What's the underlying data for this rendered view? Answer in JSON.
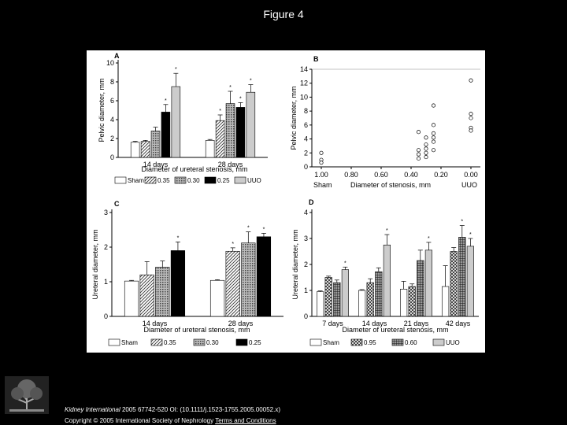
{
  "page": {
    "title": "Figure 4",
    "citation_journal": "Kidney International",
    "citation_rest": " 2005 67742-520 OI: (10.1111/j.1523-1755.2005.00052.x)",
    "copyright_text": "Copyright © 2005 International Society of Nephrology ",
    "copyright_link": "Terms and Conditions",
    "publisher": "ELSEVIER"
  },
  "chart_data": [
    {
      "panel": "A",
      "type": "bar",
      "ylabel": "Pelvic diameter, mm",
      "xlabel": "Diameter of ureteral stenosis, mm",
      "ylim": [
        0,
        10
      ],
      "yticks": [
        "0",
        "2",
        "4",
        "6",
        "8",
        "10"
      ],
      "categories": [
        "14 days",
        "28 days"
      ],
      "series": [
        {
          "name": "Sham",
          "values": [
            1.6,
            1.8
          ],
          "errors": [
            0.1,
            0.1
          ],
          "sig": [
            false,
            false
          ],
          "pattern": "white"
        },
        {
          "name": "0.35",
          "values": [
            1.7,
            3.9
          ],
          "errors": [
            0.1,
            0.6
          ],
          "sig": [
            false,
            true
          ],
          "pattern": "diag"
        },
        {
          "name": "0.30",
          "values": [
            2.8,
            5.7
          ],
          "errors": [
            0.4,
            1.3
          ],
          "sig": [
            false,
            true
          ],
          "pattern": "dots"
        },
        {
          "name": "0.25",
          "values": [
            4.8,
            5.3
          ],
          "errors": [
            0.8,
            0.5
          ],
          "sig": [
            true,
            true
          ],
          "pattern": "black"
        },
        {
          "name": "UUO",
          "values": [
            7.5,
            6.9
          ],
          "errors": [
            1.4,
            0.8
          ],
          "sig": [
            true,
            true
          ],
          "pattern": "gray"
        }
      ]
    },
    {
      "panel": "B",
      "type": "scatter",
      "ylabel": "Pelvic diameter, mm",
      "xlabel": "Diameter of stenosis, mm",
      "ylim": [
        0,
        14
      ],
      "yticks": [
        "0",
        "2",
        "4",
        "6",
        "8",
        "10",
        "12",
        "14"
      ],
      "xticks": [
        "1.00",
        "0.80",
        "0.60",
        "0.40",
        "0.20",
        "0.00"
      ],
      "x_left_label": "Sham",
      "x_right_label": "UUO",
      "points": [
        {
          "x": 1.0,
          "y": 2.0
        },
        {
          "x": 1.0,
          "y": 1.0
        },
        {
          "x": 1.0,
          "y": 0.6
        },
        {
          "x": 0.35,
          "y": 5.0
        },
        {
          "x": 0.35,
          "y": 2.4
        },
        {
          "x": 0.35,
          "y": 1.8
        },
        {
          "x": 0.35,
          "y": 1.2
        },
        {
          "x": 0.3,
          "y": 4.2
        },
        {
          "x": 0.3,
          "y": 3.2
        },
        {
          "x": 0.3,
          "y": 2.6
        },
        {
          "x": 0.3,
          "y": 2.0
        },
        {
          "x": 0.3,
          "y": 1.4
        },
        {
          "x": 0.25,
          "y": 8.8
        },
        {
          "x": 0.25,
          "y": 6.0
        },
        {
          "x": 0.25,
          "y": 4.8
        },
        {
          "x": 0.25,
          "y": 4.2
        },
        {
          "x": 0.25,
          "y": 3.6
        },
        {
          "x": 0.25,
          "y": 2.4
        },
        {
          "x": 0.0,
          "y": 12.4
        },
        {
          "x": 0.0,
          "y": 7.6
        },
        {
          "x": 0.0,
          "y": 7.0
        },
        {
          "x": 0.0,
          "y": 5.6
        },
        {
          "x": 0.0,
          "y": 5.2
        }
      ]
    },
    {
      "panel": "C",
      "type": "bar",
      "ylabel": "Ureteral diameter, mm",
      "xlabel": "Diameter of ureteral stenosis, mm",
      "ylim": [
        0,
        3
      ],
      "yticks": [
        "0",
        "1",
        "2",
        "3"
      ],
      "categories": [
        "14 days",
        "28 days"
      ],
      "series": [
        {
          "name": "Sham",
          "values": [
            1.02,
            1.04
          ],
          "errors": [
            0.02,
            0.02
          ],
          "sig": [
            false,
            false
          ],
          "pattern": "white"
        },
        {
          "name": "0.35",
          "values": [
            1.2,
            1.88
          ],
          "errors": [
            0.38,
            0.1
          ],
          "sig": [
            false,
            true
          ],
          "pattern": "diag"
        },
        {
          "name": "0.30",
          "values": [
            1.42,
            2.12
          ],
          "errors": [
            0.18,
            0.32
          ],
          "sig": [
            false,
            true
          ],
          "pattern": "dots"
        },
        {
          "name": "0.25",
          "values": [
            1.9,
            2.3
          ],
          "errors": [
            0.25,
            0.1
          ],
          "sig": [
            true,
            true
          ],
          "pattern": "black"
        }
      ]
    },
    {
      "panel": "D",
      "type": "bar",
      "ylabel": "Ureteral diameter, mm",
      "xlabel": "Diameter of ureteral stenosis, mm",
      "ylim": [
        0,
        4
      ],
      "yticks": [
        "0",
        "1",
        "2",
        "3",
        "4"
      ],
      "categories": [
        "7 days",
        "14 days",
        "21 days",
        "42 days"
      ],
      "series": [
        {
          "name": "Sham",
          "values": [
            0.95,
            1.0,
            1.05,
            1.15
          ],
          "errors": [
            0.03,
            0.03,
            0.3,
            0.8
          ],
          "sig": [
            false,
            false,
            false,
            false
          ],
          "pattern": "white"
        },
        {
          "name": "0.95",
          "values": [
            1.5,
            1.3,
            1.15,
            2.5
          ],
          "errors": [
            0.05,
            0.15,
            0.1,
            0.15
          ],
          "sig": [
            false,
            false,
            false,
            false
          ],
          "pattern": "cross"
        },
        {
          "name": "0.60",
          "values": [
            1.3,
            1.72,
            2.15,
            3.05
          ],
          "errors": [
            0.1,
            0.15,
            0.4,
            0.45
          ],
          "sig": [
            false,
            false,
            false,
            true
          ],
          "pattern": "grid"
        },
        {
          "name": "UUO",
          "values": [
            1.8,
            2.75,
            2.55,
            2.7
          ],
          "errors": [
            0.1,
            0.4,
            0.3,
            0.3
          ],
          "sig": [
            true,
            true,
            true,
            true
          ],
          "pattern": "gray"
        }
      ]
    }
  ]
}
